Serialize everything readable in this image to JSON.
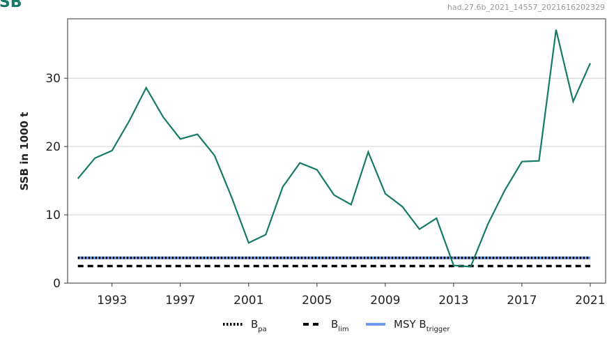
{
  "chart_data": {
    "type": "line",
    "title": "SSB",
    "subtitle": "had.27.6b_2021_14557_2021616202329",
    "y_label": "SSB in 1000 t",
    "x": [
      1991,
      1992,
      1993,
      1994,
      1995,
      1996,
      1997,
      1998,
      1999,
      2000,
      2001,
      2002,
      2003,
      2004,
      2005,
      2006,
      2007,
      2008,
      2009,
      2010,
      2011,
      2012,
      2013,
      2014,
      2015,
      2016,
      2017,
      2018,
      2019,
      2020,
      2021
    ],
    "series": [
      {
        "name": "SSB",
        "color": "#177a68",
        "values": [
          15.3,
          18.3,
          19.4,
          23.7,
          28.6,
          24.3,
          21.1,
          21.8,
          18.7,
          12.6,
          5.9,
          7.1,
          14.1,
          17.6,
          16.6,
          12.9,
          11.5,
          19.2,
          13.1,
          11.2,
          7.9,
          9.5,
          2.6,
          2.4,
          8.6,
          13.6,
          17.8,
          17.9,
          37.1,
          26.6,
          32.2
        ]
      }
    ],
    "reference_lines": [
      {
        "name": "MSY B",
        "name_sub": "trigger",
        "value": 3.7,
        "color": "#6f9cf0",
        "style": "solid"
      },
      {
        "name": "B",
        "name_sub": "pa",
        "value": 3.7,
        "color": "#000000",
        "style": "dotted"
      },
      {
        "name": "B",
        "name_sub": "lim",
        "value": 2.5,
        "color": "#000000",
        "style": "dashed"
      }
    ],
    "legend_order": [
      1,
      2,
      0
    ],
    "xlim": [
      1990.4,
      2021.9
    ],
    "ylim": [
      0,
      38.7
    ],
    "xticks": [
      1993,
      1997,
      2001,
      2005,
      2009,
      2013,
      2017,
      2021
    ],
    "yticks": [
      0,
      10,
      20,
      30
    ],
    "grid": true
  }
}
